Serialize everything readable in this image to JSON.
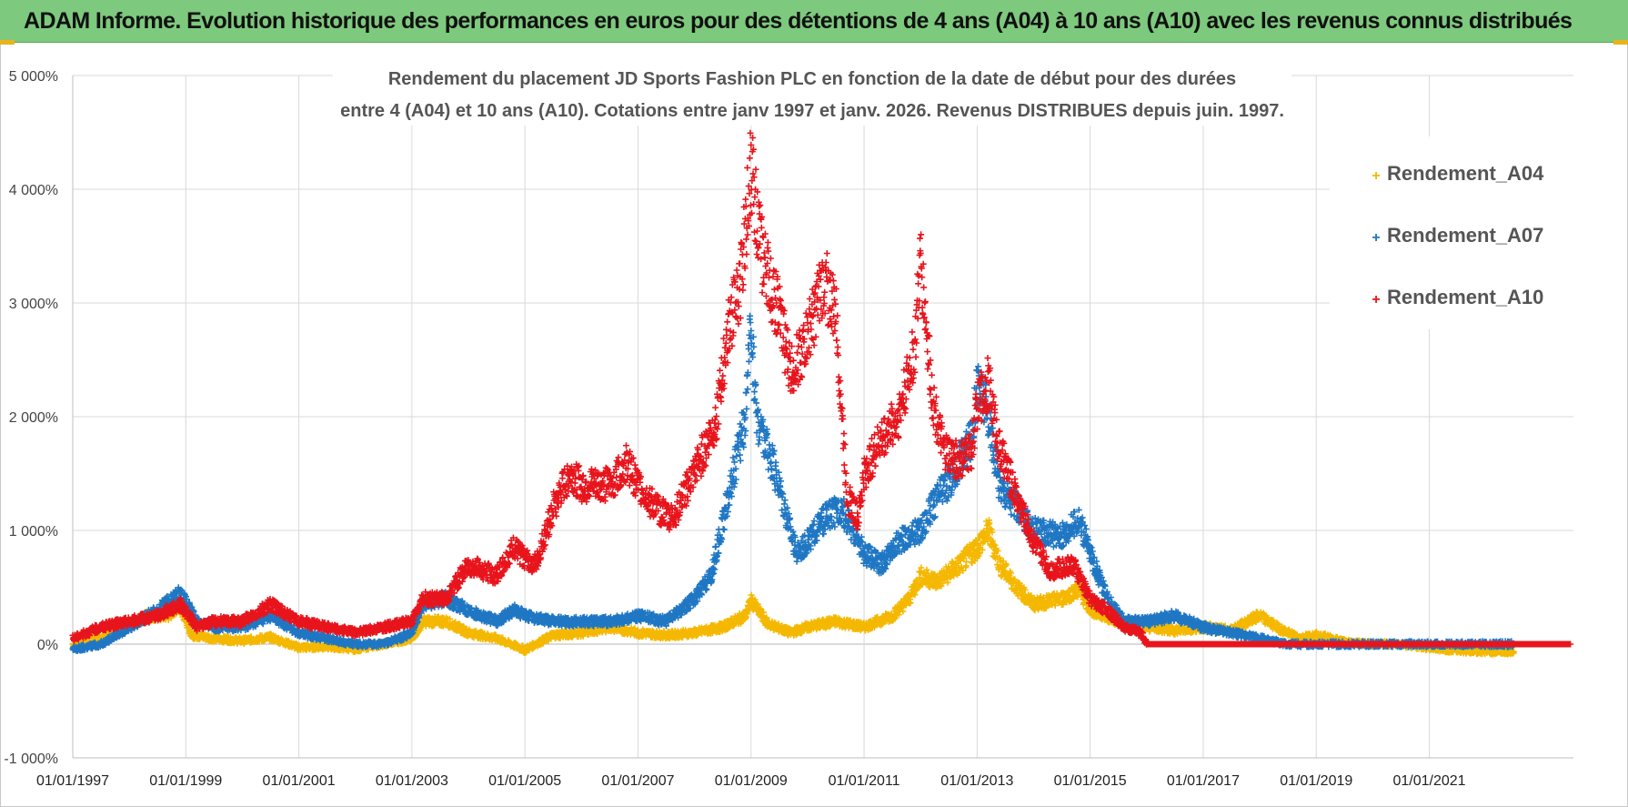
{
  "header": {
    "title": "ADAM Informe. Evolution historique des performances en euros pour des détentions de 4 ans (A04) à 10 ans (A10) avec les revenus connus distribués"
  },
  "chart_data": {
    "type": "scatter",
    "title_lines": [
      "Rendement du placement JD Sports Fashion PLC en fonction de la date de début pour des durées",
      "entre 4 (A04) et 10 ans (A10).  Cotations entre janv 1997 et janv. 2026. Revenus DISTRIBUES depuis juin. 1997."
    ],
    "xlabel": "",
    "ylabel": "",
    "xlim": [
      1997.0,
      2023.55
    ],
    "ylim": [
      -1000,
      5000
    ],
    "y_ticks": [
      -1000,
      0,
      1000,
      2000,
      3000,
      4000,
      5000
    ],
    "y_tick_labels": [
      "-1 000%",
      "0%",
      "1 000%",
      "2 000%",
      "3 000%",
      "4 000%",
      "5 000%"
    ],
    "x_ticks": [
      1997,
      1999,
      2001,
      2003,
      2005,
      2007,
      2009,
      2011,
      2013,
      2015,
      2017,
      2019,
      2021
    ],
    "x_tick_labels": [
      "01/01/1997",
      "01/01/1999",
      "01/01/2001",
      "01/01/2003",
      "01/01/2005",
      "01/01/2007",
      "01/01/2009",
      "01/01/2011",
      "01/01/2013",
      "01/01/2015",
      "01/01/2017",
      "01/01/2019",
      "01/01/2021"
    ],
    "grid": true,
    "legend_position": "top-right",
    "series": [
      {
        "name": "Rendement_A04",
        "color": "#f5b800",
        "points": [
          [
            1997.0,
            0
          ],
          [
            1997.5,
            50
          ],
          [
            1998.0,
            150
          ],
          [
            1998.3,
            250
          ],
          [
            1998.7,
            250
          ],
          [
            1998.9,
            350
          ],
          [
            1999.1,
            80
          ],
          [
            1999.5,
            50
          ],
          [
            2000.0,
            30
          ],
          [
            2000.5,
            60
          ],
          [
            2001.0,
            -30
          ],
          [
            2001.5,
            -20
          ],
          [
            2002.0,
            -40
          ],
          [
            2002.5,
            0
          ],
          [
            2003.0,
            50
          ],
          [
            2003.2,
            200
          ],
          [
            2003.6,
            200
          ],
          [
            2004.0,
            100
          ],
          [
            2004.5,
            50
          ],
          [
            2005.0,
            -50
          ],
          [
            2005.5,
            80
          ],
          [
            2006.0,
            100
          ],
          [
            2006.5,
            150
          ],
          [
            2007.0,
            100
          ],
          [
            2007.5,
            80
          ],
          [
            2008.0,
            100
          ],
          [
            2008.5,
            150
          ],
          [
            2008.9,
            250
          ],
          [
            2009.0,
            380
          ],
          [
            2009.3,
            180
          ],
          [
            2009.7,
            100
          ],
          [
            2010.0,
            150
          ],
          [
            2010.5,
            200
          ],
          [
            2011.0,
            150
          ],
          [
            2011.5,
            250
          ],
          [
            2011.8,
            400
          ],
          [
            2012.0,
            600
          ],
          [
            2012.3,
            550
          ],
          [
            2012.7,
            700
          ],
          [
            2013.0,
            850
          ],
          [
            2013.2,
            1000
          ],
          [
            2013.4,
            700
          ],
          [
            2013.7,
            500
          ],
          [
            2014.0,
            350
          ],
          [
            2014.5,
            400
          ],
          [
            2014.8,
            480
          ],
          [
            2015.0,
            300
          ],
          [
            2015.5,
            200
          ],
          [
            2016.0,
            150
          ],
          [
            2016.5,
            120
          ],
          [
            2017.0,
            150
          ],
          [
            2017.5,
            120
          ],
          [
            2017.8,
            200
          ],
          [
            2018.0,
            250
          ],
          [
            2018.3,
            150
          ],
          [
            2018.7,
            50
          ],
          [
            2019.0,
            80
          ],
          [
            2019.5,
            20
          ],
          [
            2020.0,
            0
          ],
          [
            2020.5,
            0
          ],
          [
            2021.0,
            -30
          ],
          [
            2021.5,
            -50
          ],
          [
            2022.0,
            -60
          ],
          [
            2022.5,
            -60
          ]
        ]
      },
      {
        "name": "Rendement_A07",
        "color": "#1f77c4",
        "points": [
          [
            1997.0,
            -50
          ],
          [
            1997.5,
            0
          ],
          [
            1998.0,
            150
          ],
          [
            1998.5,
            300
          ],
          [
            1998.9,
            450
          ],
          [
            1999.2,
            200
          ],
          [
            1999.5,
            150
          ],
          [
            2000.0,
            150
          ],
          [
            2000.5,
            250
          ],
          [
            2001.0,
            100
          ],
          [
            2001.5,
            50
          ],
          [
            2002.0,
            0
          ],
          [
            2002.5,
            0
          ],
          [
            2003.0,
            100
          ],
          [
            2003.2,
            350
          ],
          [
            2003.6,
            400
          ],
          [
            2004.0,
            300
          ],
          [
            2004.5,
            200
          ],
          [
            2004.8,
            300
          ],
          [
            2005.0,
            250
          ],
          [
            2005.5,
            200
          ],
          [
            2006.0,
            200
          ],
          [
            2006.5,
            200
          ],
          [
            2007.0,
            250
          ],
          [
            2007.5,
            200
          ],
          [
            2008.0,
            400
          ],
          [
            2008.3,
            600
          ],
          [
            2008.6,
            1300
          ],
          [
            2008.9,
            2000
          ],
          [
            2009.0,
            2800
          ],
          [
            2009.1,
            2000
          ],
          [
            2009.3,
            1700
          ],
          [
            2009.5,
            1400
          ],
          [
            2009.8,
            800
          ],
          [
            2010.0,
            900
          ],
          [
            2010.3,
            1100
          ],
          [
            2010.6,
            1200
          ],
          [
            2010.8,
            1000
          ],
          [
            2011.0,
            800
          ],
          [
            2011.3,
            700
          ],
          [
            2011.6,
            900
          ],
          [
            2012.0,
            1000
          ],
          [
            2012.3,
            1300
          ],
          [
            2012.6,
            1500
          ],
          [
            2012.9,
            1800
          ],
          [
            2013.0,
            2300
          ],
          [
            2013.2,
            2000
          ],
          [
            2013.4,
            1400
          ],
          [
            2013.7,
            1200
          ],
          [
            2014.0,
            1000
          ],
          [
            2014.5,
            950
          ],
          [
            2014.8,
            1100
          ],
          [
            2015.0,
            800
          ],
          [
            2015.3,
            400
          ],
          [
            2015.6,
            200
          ],
          [
            2016.0,
            200
          ],
          [
            2016.5,
            250
          ],
          [
            2017.0,
            150
          ],
          [
            2017.5,
            100
          ],
          [
            2018.0,
            50
          ],
          [
            2018.5,
            0
          ],
          [
            2019.0,
            0
          ],
          [
            2019.5,
            0
          ],
          [
            2020.0,
            0
          ],
          [
            2020.5,
            0
          ],
          [
            2021.0,
            0
          ],
          [
            2021.5,
            0
          ],
          [
            2022.0,
            0
          ],
          [
            2022.5,
            0
          ]
        ]
      },
      {
        "name": "Rendement_A10",
        "color": "#e8141c",
        "points": [
          [
            1997.0,
            50
          ],
          [
            1997.5,
            150
          ],
          [
            1998.0,
            200
          ],
          [
            1998.5,
            250
          ],
          [
            1998.9,
            350
          ],
          [
            1999.2,
            150
          ],
          [
            1999.5,
            200
          ],
          [
            2000.0,
            200
          ],
          [
            2000.5,
            350
          ],
          [
            2001.0,
            200
          ],
          [
            2001.5,
            150
          ],
          [
            2002.0,
            100
          ],
          [
            2002.5,
            150
          ],
          [
            2003.0,
            200
          ],
          [
            2003.2,
            400
          ],
          [
            2003.6,
            400
          ],
          [
            2004.0,
            700
          ],
          [
            2004.5,
            600
          ],
          [
            2004.8,
            850
          ],
          [
            2005.0,
            750
          ],
          [
            2005.2,
            700
          ],
          [
            2005.5,
            1200
          ],
          [
            2005.8,
            1500
          ],
          [
            2006.0,
            1400
          ],
          [
            2006.5,
            1400
          ],
          [
            2006.8,
            1600
          ],
          [
            2007.0,
            1400
          ],
          [
            2007.3,
            1200
          ],
          [
            2007.6,
            1100
          ],
          [
            2008.0,
            1500
          ],
          [
            2008.4,
            2000
          ],
          [
            2008.6,
            2800
          ],
          [
            2008.8,
            3100
          ],
          [
            2009.0,
            4200
          ],
          [
            2009.2,
            3400
          ],
          [
            2009.5,
            2900
          ],
          [
            2009.7,
            2400
          ],
          [
            2010.0,
            2700
          ],
          [
            2010.3,
            3200
          ],
          [
            2010.5,
            2900
          ],
          [
            2010.7,
            1300
          ],
          [
            2010.9,
            1100
          ],
          [
            2011.0,
            1500
          ],
          [
            2011.3,
            1800
          ],
          [
            2011.6,
            2000
          ],
          [
            2011.9,
            2600
          ],
          [
            2012.0,
            3400
          ],
          [
            2012.2,
            2200
          ],
          [
            2012.4,
            1700
          ],
          [
            2012.7,
            1600
          ],
          [
            2012.9,
            1700
          ],
          [
            2013.0,
            2100
          ],
          [
            2013.2,
            2300
          ],
          [
            2013.4,
            1700
          ],
          [
            2013.7,
            1300
          ],
          [
            2014.0,
            900
          ],
          [
            2014.3,
            650
          ],
          [
            2014.7,
            700
          ],
          [
            2015.0,
            400
          ],
          [
            2015.3,
            300
          ],
          [
            2015.6,
            150
          ],
          [
            2015.9,
            100
          ],
          [
            2016.0,
            0
          ],
          [
            2017.0,
            0
          ],
          [
            2018.0,
            0
          ],
          [
            2019.0,
            0
          ],
          [
            2020.0,
            0
          ],
          [
            2021.0,
            0
          ],
          [
            2022.0,
            0
          ],
          [
            2023.5,
            0
          ]
        ]
      }
    ]
  }
}
